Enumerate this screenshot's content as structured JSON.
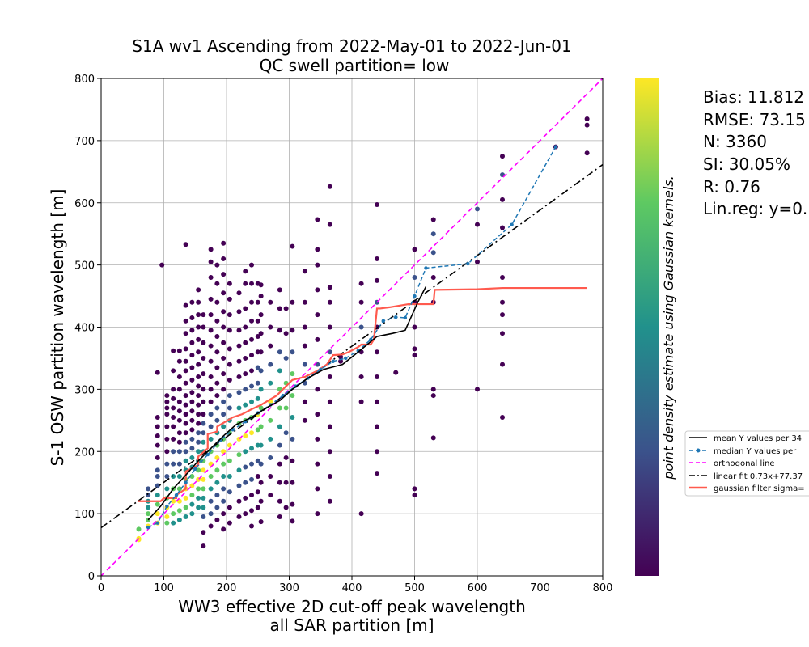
{
  "chart_data": {
    "type": "scatter",
    "title": "S1A wv1 Ascending from 2022-May-01 to 2022-Jun-01",
    "subtitle": "QC swell partition= low",
    "xlabel_line1": "WW3 effective 2D cut-off peak wavelength",
    "xlabel_line2": "all SAR partition [m]",
    "ylabel": "S-1 OSW partition wavelength [m]",
    "xlim": [
      0,
      800
    ],
    "ylim": [
      0,
      800
    ],
    "xticks": [
      "0",
      "100",
      "200",
      "300",
      "400",
      "500",
      "600",
      "700",
      "800"
    ],
    "yticks": [
      "0",
      "100",
      "200",
      "300",
      "400",
      "500",
      "600",
      "700",
      "800"
    ],
    "grid": true,
    "colorbar_label": "point density estimate using Gaussian kernels.",
    "colormap": [
      "#440154",
      "#3b528b",
      "#21918c",
      "#5ec962",
      "#fde725"
    ],
    "stats": [
      "Bias: 11.812",
      "RMSE: 73.15",
      "N: 3360",
      "SI: 30.05%",
      "R: 0.76",
      "Lin.reg: y=0."
    ],
    "legend_placement": "right, outside plot",
    "legend": [
      {
        "label": "mean Y values per 34",
        "color": "#000000",
        "style": "solid"
      },
      {
        "label": "median Y values per",
        "color": "#1f77b4",
        "style": "dashed-dot-marker"
      },
      {
        "label": "orthogonal line",
        "color": "#ff00ff",
        "style": "dashed"
      },
      {
        "label": "linear fit 0.73x+77.37",
        "color": "#000000",
        "style": "dashdot"
      },
      {
        "label": "gaussian filter sigma=",
        "color": "#ff5a4e",
        "style": "thick"
      }
    ],
    "orthogonal_line": {
      "x": [
        0,
        800
      ],
      "y": [
        0,
        800
      ],
      "color": "#ff00ff"
    },
    "linear_fit": {
      "slope": 0.73,
      "intercept": 77.37,
      "x": [
        0,
        800
      ],
      "color": "#000000"
    },
    "mean_series": {
      "color": "#000000",
      "x": [
        75,
        95,
        115,
        135,
        155,
        175,
        195,
        215,
        240,
        260,
        285,
        305,
        330,
        355,
        385,
        410,
        440,
        465,
        485,
        505,
        518
      ],
      "y": [
        90,
        112,
        140,
        162,
        185,
        205,
        225,
        243,
        255,
        268,
        282,
        300,
        318,
        332,
        340,
        360,
        385,
        390,
        395,
        440,
        465
      ]
    },
    "median_series": {
      "color": "#1f77b4",
      "x": [
        75,
        90,
        105,
        120,
        135,
        150,
        170,
        190,
        210,
        230,
        250,
        270,
        290,
        310,
        330,
        350,
        370,
        390,
        410,
        430,
        450,
        470,
        485,
        500,
        518,
        585,
        655,
        725
      ],
      "y": [
        78,
        85,
        112,
        130,
        150,
        172,
        195,
        218,
        235,
        248,
        262,
        275,
        290,
        305,
        318,
        332,
        345,
        350,
        362,
        380,
        410,
        416,
        415,
        450,
        495,
        502,
        565,
        690
      ]
    },
    "gaussian_series": {
      "color": "#ff5a4e",
      "x": [
        58,
        95,
        100,
        120,
        120,
        135,
        135,
        155,
        155,
        170,
        170,
        185,
        185,
        210,
        225,
        240,
        255,
        280,
        305,
        325,
        345,
        360,
        370,
        385,
        395,
        410,
        415,
        430,
        435,
        440,
        445,
        460,
        490,
        520,
        530,
        532,
        600,
        640,
        775
      ],
      "y": [
        120,
        120,
        125,
        125,
        130,
        140,
        168,
        178,
        192,
        205,
        228,
        232,
        240,
        255,
        260,
        268,
        275,
        290,
        315,
        320,
        330,
        340,
        355,
        356,
        360,
        368,
        372,
        372,
        380,
        430,
        430,
        432,
        437,
        437,
        437,
        460,
        461,
        463,
        463
      ]
    },
    "scatter_columns": [
      {
        "x": 60,
        "y": [
          58,
          60,
          75
        ]
      },
      {
        "x": 75,
        "y": [
          80,
          90,
          100,
          110,
          120,
          130,
          140
        ]
      },
      {
        "x": 90,
        "y": [
          85,
          100,
          115,
          130,
          145,
          160,
          170,
          190,
          210,
          225,
          240,
          255,
          327
        ]
      },
      {
        "x": 97,
        "y": [
          500
        ]
      },
      {
        "x": 105,
        "y": [
          85,
          95,
          110,
          125,
          140,
          160,
          180,
          200,
          220,
          240,
          260,
          270,
          280,
          290
        ]
      },
      {
        "x": 115,
        "y": [
          85,
          100,
          120,
          140,
          160,
          180,
          200,
          220,
          240,
          255,
          270,
          285,
          300,
          330,
          362
        ]
      },
      {
        "x": 125,
        "y": [
          90,
          105,
          120,
          140,
          160,
          180,
          200,
          215,
          230,
          250,
          265,
          280,
          300,
          320,
          345,
          362
        ]
      },
      {
        "x": 135,
        "y": [
          95,
          110,
          125,
          140,
          155,
          170,
          185,
          200,
          215,
          230,
          245,
          260,
          275,
          290,
          310,
          330,
          345,
          365,
          390,
          410,
          435,
          533
        ]
      },
      {
        "x": 145,
        "y": [
          100,
          115,
          130,
          145,
          160,
          175,
          190,
          205,
          220,
          235,
          250,
          265,
          280,
          295,
          315,
          335,
          355,
          375,
          395,
          415,
          440
        ]
      },
      {
        "x": 155,
        "y": [
          110,
          125,
          140,
          155,
          170,
          185,
          200,
          215,
          230,
          245,
          260,
          275,
          290,
          305,
          320,
          340,
          360,
          380,
          400,
          420,
          440,
          460
        ]
      },
      {
        "x": 163,
        "y": [
          48,
          70,
          95,
          110,
          125,
          140,
          155,
          170,
          185,
          200,
          215,
          230,
          245,
          260,
          280,
          300,
          325,
          350,
          375,
          400,
          420
        ]
      },
      {
        "x": 175,
        "y": [
          80,
          100,
          120,
          140,
          160,
          180,
          200,
          220,
          240,
          260,
          280,
          300,
          320,
          345,
          370,
          395,
          420,
          445,
          480,
          505,
          525
        ]
      },
      {
        "x": 185,
        "y": [
          90,
          110,
          130,
          150,
          170,
          190,
          210,
          230,
          250,
          270,
          290,
          310,
          335,
          360,
          385,
          410,
          440,
          470,
          500
        ]
      },
      {
        "x": 195,
        "y": [
          75,
          100,
          120,
          140,
          160,
          180,
          200,
          220,
          240,
          260,
          280,
          300,
          325,
          350,
          375,
          400,
          425,
          455,
          485,
          510,
          535
        ]
      },
      {
        "x": 205,
        "y": [
          85,
          110,
          135,
          160,
          185,
          210,
          230,
          250,
          270,
          290,
          315,
          340,
          365,
          395,
          420,
          445,
          470
        ]
      },
      {
        "x": 220,
        "y": [
          95,
          120,
          145,
          170,
          195,
          220,
          245,
          270,
          295,
          320,
          345,
          370,
          395,
          425,
          455
        ]
      },
      {
        "x": 230,
        "y": [
          100,
          125,
          150,
          175,
          200,
          225,
          250,
          275,
          300,
          325,
          350,
          375,
          400,
          430,
          470,
          490
        ]
      },
      {
        "x": 240,
        "y": [
          80,
          105,
          130,
          155,
          180,
          205,
          230,
          255,
          280,
          305,
          330,
          355,
          380,
          410,
          440,
          470,
          500
        ]
      },
      {
        "x": 250,
        "y": [
          110,
          135,
          160,
          185,
          210,
          235,
          260,
          285,
          310,
          335,
          360,
          385,
          410,
          440,
          470
        ]
      },
      {
        "x": 255,
        "y": [
          87,
          120,
          150,
          180,
          210,
          240,
          270,
          300,
          330,
          360,
          390,
          420,
          450,
          468
        ]
      },
      {
        "x": 270,
        "y": [
          130,
          160,
          190,
          220,
          250,
          280,
          310,
          340,
          370,
          400,
          440
        ]
      },
      {
        "x": 285,
        "y": [
          95,
          120,
          150,
          180,
          210,
          240,
          270,
          300,
          330,
          360,
          395,
          430,
          460
        ]
      },
      {
        "x": 295,
        "y": [
          110,
          150,
          190,
          230,
          270,
          310,
          350,
          390,
          430
        ]
      },
      {
        "x": 305,
        "y": [
          88,
          115,
          150,
          185,
          220,
          255,
          290,
          325,
          360,
          395,
          440,
          530
        ]
      },
      {
        "x": 325,
        "y": [
          250,
          280,
          310,
          340,
          370,
          400,
          440,
          490
        ]
      },
      {
        "x": 345,
        "y": [
          100,
          140,
          180,
          220,
          260,
          300,
          340,
          380,
          420,
          460,
          500,
          525,
          573
        ]
      },
      {
        "x": 365,
        "y": [
          120,
          160,
          200,
          240,
          280,
          320,
          360,
          400,
          440,
          464,
          565,
          626
        ]
      },
      {
        "x": 382,
        "y": [
          345,
          352
        ]
      },
      {
        "x": 415,
        "y": [
          100,
          280,
          320,
          360,
          400,
          440,
          470
        ]
      },
      {
        "x": 440,
        "y": [
          165,
          200,
          240,
          280,
          320,
          360,
          400,
          440,
          475,
          510,
          597
        ]
      },
      {
        "x": 470,
        "y": [
          327
        ]
      },
      {
        "x": 500,
        "y": [
          130,
          140,
          355,
          365,
          400,
          440,
          480,
          525
        ]
      },
      {
        "x": 530,
        "y": [
          222,
          290,
          300,
          440,
          480,
          520,
          550,
          573
        ]
      },
      {
        "x": 600,
        "y": [
          300,
          505,
          565,
          590
        ]
      },
      {
        "x": 640,
        "y": [
          255,
          340,
          390,
          420,
          440,
          480,
          560,
          605,
          645,
          675
        ]
      },
      {
        "x": 725,
        "y": [
          690
        ]
      },
      {
        "x": 775,
        "y": [
          680,
          725,
          735
        ]
      }
    ]
  }
}
